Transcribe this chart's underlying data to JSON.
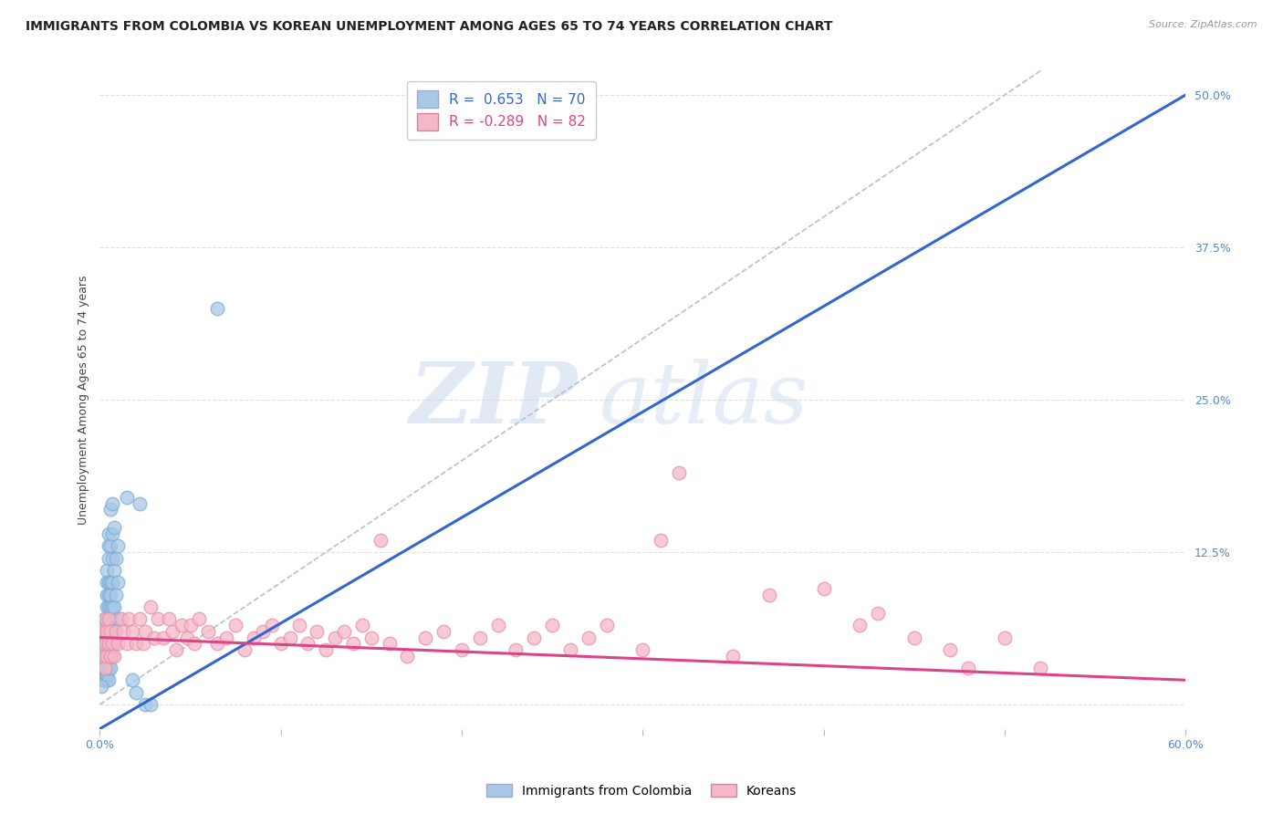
{
  "title": "IMMIGRANTS FROM COLOMBIA VS KOREAN UNEMPLOYMENT AMONG AGES 65 TO 74 YEARS CORRELATION CHART",
  "source": "Source: ZipAtlas.com",
  "xlabel": "",
  "ylabel": "Unemployment Among Ages 65 to 74 years",
  "xlim": [
    0.0,
    0.6
  ],
  "ylim": [
    -0.02,
    0.52
  ],
  "xtick_positions": [
    0.0,
    0.1,
    0.2,
    0.3,
    0.4,
    0.5,
    0.6
  ],
  "xtick_labels": [
    "0.0%",
    "",
    "",
    "",
    "",
    "",
    "60.0%"
  ],
  "yticks_right": [
    0.0,
    0.125,
    0.25,
    0.375,
    0.5
  ],
  "ytick_labels_right": [
    "",
    "12.5%",
    "25.0%",
    "37.5%",
    "50.0%"
  ],
  "blue_R": 0.653,
  "blue_N": 70,
  "pink_R": -0.289,
  "pink_N": 82,
  "blue_color": "#a8c8e8",
  "pink_color": "#f5b8c8",
  "blue_edge_color": "#7aaed0",
  "pink_edge_color": "#e890a8",
  "blue_line_color": "#3366cc",
  "pink_line_color": "#dd4488",
  "watermark_zip": "ZIP",
  "watermark_atlas": "atlas",
  "legend_label_blue": "Immigrants from Colombia",
  "legend_label_pink": "Koreans",
  "blue_line_x": [
    0.0,
    0.6
  ],
  "blue_line_y": [
    -0.02,
    0.5
  ],
  "pink_line_x": [
    0.0,
    0.6
  ],
  "pink_line_y": [
    0.055,
    0.02
  ],
  "diag_line_x": [
    0.0,
    0.52
  ],
  "diag_line_y": [
    0.0,
    0.52
  ],
  "blue_scatter": [
    [
      0.001,
      0.025
    ],
    [
      0.001,
      0.035
    ],
    [
      0.002,
      0.02
    ],
    [
      0.002,
      0.03
    ],
    [
      0.002,
      0.045
    ],
    [
      0.002,
      0.055
    ],
    [
      0.003,
      0.02
    ],
    [
      0.003,
      0.03
    ],
    [
      0.003,
      0.04
    ],
    [
      0.003,
      0.05
    ],
    [
      0.003,
      0.06
    ],
    [
      0.003,
      0.07
    ],
    [
      0.004,
      0.02
    ],
    [
      0.004,
      0.025
    ],
    [
      0.004,
      0.03
    ],
    [
      0.004,
      0.04
    ],
    [
      0.004,
      0.05
    ],
    [
      0.004,
      0.06
    ],
    [
      0.004,
      0.065
    ],
    [
      0.004,
      0.07
    ],
    [
      0.004,
      0.08
    ],
    [
      0.004,
      0.09
    ],
    [
      0.004,
      0.1
    ],
    [
      0.004,
      0.11
    ],
    [
      0.005,
      0.02
    ],
    [
      0.005,
      0.03
    ],
    [
      0.005,
      0.04
    ],
    [
      0.005,
      0.055
    ],
    [
      0.005,
      0.065
    ],
    [
      0.005,
      0.07
    ],
    [
      0.005,
      0.08
    ],
    [
      0.005,
      0.09
    ],
    [
      0.005,
      0.1
    ],
    [
      0.005,
      0.12
    ],
    [
      0.005,
      0.13
    ],
    [
      0.005,
      0.14
    ],
    [
      0.006,
      0.03
    ],
    [
      0.006,
      0.04
    ],
    [
      0.006,
      0.05
    ],
    [
      0.006,
      0.07
    ],
    [
      0.006,
      0.08
    ],
    [
      0.006,
      0.09
    ],
    [
      0.006,
      0.1
    ],
    [
      0.006,
      0.13
    ],
    [
      0.006,
      0.16
    ],
    [
      0.007,
      0.04
    ],
    [
      0.007,
      0.06
    ],
    [
      0.007,
      0.08
    ],
    [
      0.007,
      0.1
    ],
    [
      0.007,
      0.12
    ],
    [
      0.007,
      0.14
    ],
    [
      0.007,
      0.165
    ],
    [
      0.008,
      0.05
    ],
    [
      0.008,
      0.08
    ],
    [
      0.008,
      0.11
    ],
    [
      0.008,
      0.145
    ],
    [
      0.009,
      0.06
    ],
    [
      0.009,
      0.09
    ],
    [
      0.009,
      0.12
    ],
    [
      0.01,
      0.07
    ],
    [
      0.01,
      0.1
    ],
    [
      0.01,
      0.13
    ],
    [
      0.015,
      0.17
    ],
    [
      0.018,
      0.02
    ],
    [
      0.02,
      0.01
    ],
    [
      0.022,
      0.165
    ],
    [
      0.025,
      0.0
    ],
    [
      0.028,
      0.0
    ],
    [
      0.065,
      0.325
    ],
    [
      0.001,
      0.015
    ]
  ],
  "pink_scatter": [
    [
      0.002,
      0.04
    ],
    [
      0.002,
      0.06
    ],
    [
      0.003,
      0.03
    ],
    [
      0.003,
      0.05
    ],
    [
      0.003,
      0.07
    ],
    [
      0.004,
      0.04
    ],
    [
      0.004,
      0.06
    ],
    [
      0.005,
      0.05
    ],
    [
      0.005,
      0.07
    ],
    [
      0.006,
      0.04
    ],
    [
      0.006,
      0.06
    ],
    [
      0.007,
      0.05
    ],
    [
      0.008,
      0.04
    ],
    [
      0.009,
      0.06
    ],
    [
      0.01,
      0.05
    ],
    [
      0.012,
      0.07
    ],
    [
      0.013,
      0.06
    ],
    [
      0.015,
      0.05
    ],
    [
      0.016,
      0.07
    ],
    [
      0.018,
      0.06
    ],
    [
      0.02,
      0.05
    ],
    [
      0.022,
      0.07
    ],
    [
      0.024,
      0.05
    ],
    [
      0.025,
      0.06
    ],
    [
      0.028,
      0.08
    ],
    [
      0.03,
      0.055
    ],
    [
      0.032,
      0.07
    ],
    [
      0.035,
      0.055
    ],
    [
      0.038,
      0.07
    ],
    [
      0.04,
      0.06
    ],
    [
      0.042,
      0.045
    ],
    [
      0.045,
      0.065
    ],
    [
      0.048,
      0.055
    ],
    [
      0.05,
      0.065
    ],
    [
      0.052,
      0.05
    ],
    [
      0.055,
      0.07
    ],
    [
      0.06,
      0.06
    ],
    [
      0.065,
      0.05
    ],
    [
      0.07,
      0.055
    ],
    [
      0.075,
      0.065
    ],
    [
      0.08,
      0.045
    ],
    [
      0.085,
      0.055
    ],
    [
      0.09,
      0.06
    ],
    [
      0.095,
      0.065
    ],
    [
      0.1,
      0.05
    ],
    [
      0.105,
      0.055
    ],
    [
      0.11,
      0.065
    ],
    [
      0.115,
      0.05
    ],
    [
      0.12,
      0.06
    ],
    [
      0.125,
      0.045
    ],
    [
      0.13,
      0.055
    ],
    [
      0.135,
      0.06
    ],
    [
      0.14,
      0.05
    ],
    [
      0.145,
      0.065
    ],
    [
      0.15,
      0.055
    ],
    [
      0.16,
      0.05
    ],
    [
      0.17,
      0.04
    ],
    [
      0.18,
      0.055
    ],
    [
      0.19,
      0.06
    ],
    [
      0.2,
      0.045
    ],
    [
      0.21,
      0.055
    ],
    [
      0.22,
      0.065
    ],
    [
      0.23,
      0.045
    ],
    [
      0.24,
      0.055
    ],
    [
      0.25,
      0.065
    ],
    [
      0.26,
      0.045
    ],
    [
      0.27,
      0.055
    ],
    [
      0.28,
      0.065
    ],
    [
      0.3,
      0.045
    ],
    [
      0.32,
      0.19
    ],
    [
      0.35,
      0.04
    ],
    [
      0.37,
      0.09
    ],
    [
      0.4,
      0.095
    ],
    [
      0.42,
      0.065
    ],
    [
      0.43,
      0.075
    ],
    [
      0.45,
      0.055
    ],
    [
      0.47,
      0.045
    ],
    [
      0.48,
      0.03
    ],
    [
      0.5,
      0.055
    ],
    [
      0.52,
      0.03
    ],
    [
      0.155,
      0.135
    ],
    [
      0.31,
      0.135
    ]
  ],
  "title_fontsize": 10,
  "axis_label_fontsize": 9,
  "tick_fontsize": 9,
  "source_fontsize": 8
}
